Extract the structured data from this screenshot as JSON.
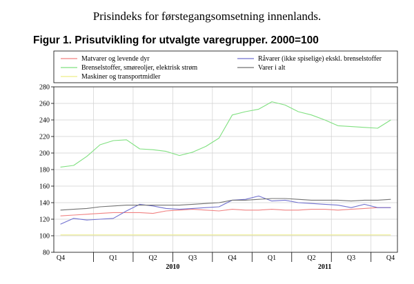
{
  "page_title": "Prisindeks for førstegangsomsetning innenlands.",
  "figure_title": "Figur 1. Prisutvikling for utvalgte varegrupper. 2000=100",
  "chart_data": {
    "type": "line",
    "title": "Figur 1. Prisutvikling for utvalgte varegrupper. 2000=100",
    "xlabel": "",
    "ylabel": "",
    "ylim": [
      80,
      280
    ],
    "yticks": [
      80,
      100,
      120,
      140,
      160,
      180,
      200,
      220,
      240,
      260,
      280
    ],
    "x": [
      "2009-10",
      "2009-11",
      "2009-12",
      "2010-01",
      "2010-02",
      "2010-03",
      "2010-04",
      "2010-05",
      "2010-06",
      "2010-07",
      "2010-08",
      "2010-09",
      "2010-10",
      "2010-11",
      "2010-12",
      "2011-01",
      "2011-02",
      "2011-03",
      "2011-04",
      "2011-05",
      "2011-06",
      "2011-07",
      "2011-08",
      "2011-09",
      "2011-10",
      "2011-11"
    ],
    "quarter_labels": [
      "Q4",
      "Q1",
      "Q2",
      "Q3",
      "Q4",
      "Q1",
      "Q2",
      "Q3",
      "Q4"
    ],
    "year_labels": [
      "2010",
      "2011"
    ],
    "grid": true,
    "legend_position": "top",
    "series": [
      {
        "name": "Matvarer og levende dyr",
        "color": "#f08080",
        "values": [
          124,
          125,
          126,
          127,
          128,
          128,
          128,
          127,
          130,
          131,
          132,
          131,
          130,
          132,
          131,
          131,
          132,
          131,
          131,
          132,
          132,
          131,
          132,
          133,
          134,
          134
        ]
      },
      {
        "name": "Brenselstoffer, smøreoljer, elektrisk strøm",
        "color": "#7fe07f",
        "values": [
          183,
          185,
          196,
          210,
          215,
          216,
          205,
          204,
          202,
          197,
          201,
          208,
          218,
          246,
          250,
          253,
          262,
          258,
          250,
          246,
          240,
          233,
          232,
          231,
          230,
          240
        ]
      },
      {
        "name": "Maskiner og transportmidler",
        "color": "#eeee88",
        "values": [
          101,
          101,
          101,
          101,
          101,
          101,
          101,
          101,
          101,
          101,
          101,
          101,
          101,
          101,
          101,
          101,
          101,
          101,
          101,
          101,
          101,
          101,
          101,
          101,
          101,
          101
        ]
      },
      {
        "name": "Råvarer (ikke spiselige) ekskl. brenselstoffer",
        "color": "#6f6fcf",
        "values": [
          114,
          121,
          119,
          120,
          121,
          130,
          138,
          136,
          133,
          132,
          133,
          134,
          135,
          143,
          144,
          148,
          142,
          143,
          140,
          139,
          138,
          137,
          134,
          138,
          134,
          134
        ]
      },
      {
        "name": "Varer i alt",
        "color": "#707070",
        "values": [
          131,
          132,
          133,
          135,
          136,
          137,
          137,
          137,
          137,
          137,
          138,
          139,
          140,
          143,
          143,
          144,
          145,
          145,
          144,
          143,
          143,
          143,
          142,
          143,
          143,
          144
        ]
      }
    ]
  }
}
